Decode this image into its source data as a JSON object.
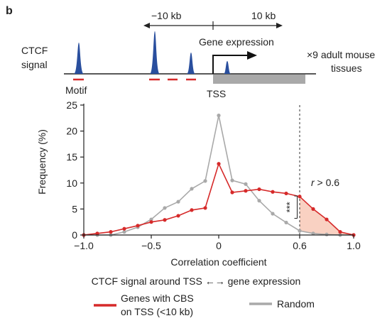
{
  "panel_label": "b",
  "schematic": {
    "ctcf_label_line1": "CTCF",
    "ctcf_label_line2": "signal",
    "motif_label": "Motif",
    "tss_label": "TSS",
    "range_left": "−10 kb",
    "range_right": "10 kb",
    "gene_expression_label": "Gene expression",
    "tissues_line1": "×9 adult mouse",
    "tissues_line2": "tissues",
    "colors": {
      "peak": "#2a4f9e",
      "motif": "#d62a2a",
      "gene_body": "#a9a9a9"
    }
  },
  "caption": "CTCF signal around TSS ←→ gene expression",
  "legend": {
    "cbs_line1": "Genes with CBS",
    "cbs_line2": "on TSS (<10 kb)",
    "random": "Random"
  },
  "chart_data": {
    "type": "line",
    "xlabel": "Correlation coefficient",
    "ylabel": "Frequency (%)",
    "xlim": [
      -1.0,
      1.0
    ],
    "ylim": [
      0,
      25
    ],
    "xticks": [
      "−1.0",
      "−0.5",
      "0",
      "0.6",
      "1.0"
    ],
    "xtick_values": [
      -1.0,
      -0.5,
      0,
      0.6,
      1.0
    ],
    "yticks": [
      "0",
      "5",
      "10",
      "15",
      "20",
      "25"
    ],
    "ytick_values": [
      0,
      5,
      10,
      15,
      20,
      25
    ],
    "grid": false,
    "legend_position": "bottom",
    "threshold": {
      "x": 0.6,
      "label_prefix": "r",
      "label_suffix": " > 0.6",
      "shade_color": "#f7c1ad"
    },
    "significance": {
      "x": 0.55,
      "y_low": 3.2,
      "y_high": 7.5,
      "label": "***"
    },
    "series": [
      {
        "name": "Genes with CBS on TSS (<10 kb)",
        "color": "#d62a2a",
        "x": [
          -1.0,
          -0.9,
          -0.8,
          -0.7,
          -0.6,
          -0.5,
          -0.4,
          -0.3,
          -0.2,
          -0.1,
          0.0,
          0.1,
          0.2,
          0.3,
          0.4,
          0.5,
          0.6,
          0.7,
          0.8,
          0.9,
          1.0
        ],
        "values": [
          0.0,
          0.3,
          0.6,
          1.2,
          1.8,
          2.5,
          2.9,
          3.7,
          4.8,
          5.2,
          13.7,
          8.2,
          8.5,
          8.8,
          8.3,
          8.0,
          7.4,
          5.0,
          3.0,
          0.6,
          0.0
        ]
      },
      {
        "name": "Random",
        "color": "#a9a9a9",
        "x": [
          -1.0,
          -0.9,
          -0.8,
          -0.7,
          -0.6,
          -0.5,
          -0.4,
          -0.3,
          -0.2,
          -0.1,
          0.0,
          0.1,
          0.2,
          0.3,
          0.4,
          0.5,
          0.6,
          0.7,
          0.8,
          0.9,
          1.0
        ],
        "values": [
          0.0,
          0.0,
          0.0,
          0.6,
          1.5,
          3.0,
          5.2,
          6.4,
          8.9,
          10.4,
          23.0,
          10.5,
          9.8,
          6.6,
          4.1,
          2.4,
          0.8,
          0.3,
          0.1,
          0.0,
          0.0
        ]
      }
    ]
  }
}
